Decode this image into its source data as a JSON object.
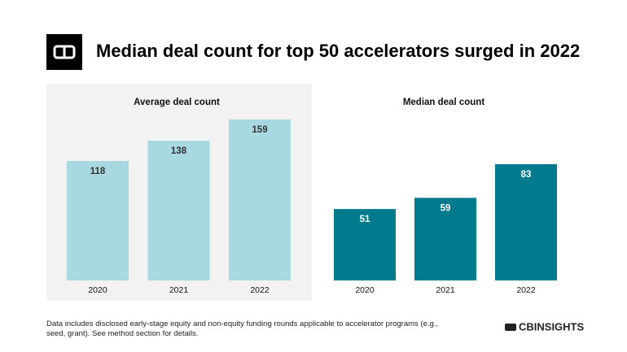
{
  "title": "Median deal count for top 50 accelerators surged in 2022",
  "chart_data": [
    {
      "type": "bar",
      "title": "Average deal count",
      "categories": [
        "2020",
        "2021",
        "2022"
      ],
      "values": [
        118,
        138,
        159
      ],
      "color": "#a8d8e0",
      "label_color": "#333333",
      "background": "#f2f2f2"
    },
    {
      "type": "bar",
      "title": "Median deal count",
      "categories": [
        "2020",
        "2021",
        "2022"
      ],
      "values": [
        51,
        59,
        83
      ],
      "color": "#007a8c",
      "label_color": "#ffffff",
      "background": "#ffffff"
    }
  ],
  "footnote": "Data includes disclosed early-stage equity and non-equity funding rounds applicable to accelerator programs (e.g., seed, grant). See method section for details.",
  "logo": "CBINSIGHTS"
}
